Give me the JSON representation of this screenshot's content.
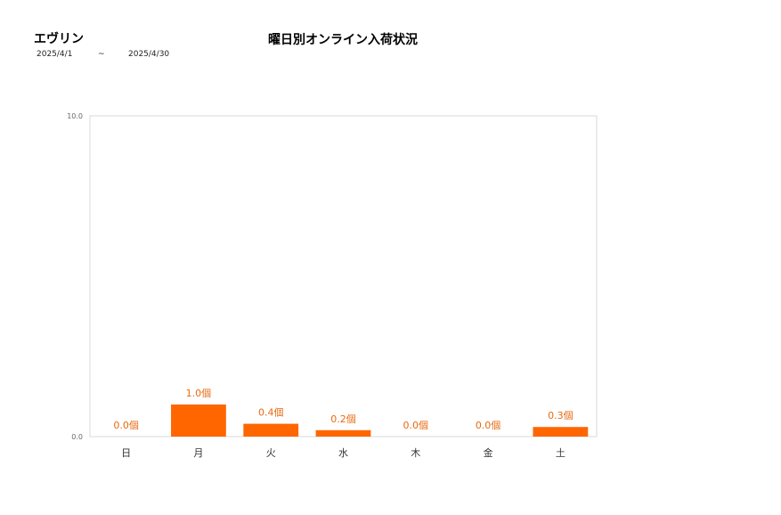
{
  "header": {
    "brand": "エヴリン",
    "title": "曜日別オンライン入荷状況",
    "date_start": "2025/4/1",
    "date_sep": "~",
    "date_end": "2025/4/30"
  },
  "chart_data": {
    "type": "bar",
    "categories": [
      "日",
      "月",
      "火",
      "水",
      "木",
      "金",
      "土"
    ],
    "values": [
      0.0,
      1.0,
      0.4,
      0.2,
      0.0,
      0.0,
      0.3
    ],
    "data_labels": [
      "0.0個",
      "1.0個",
      "0.4個",
      "0.2個",
      "0.0個",
      "0.0個",
      "0.3個"
    ],
    "ylim": [
      0,
      10
    ],
    "yticks": [
      "0.0",
      "10.0"
    ],
    "title": "曜日別オンライン入荷状況",
    "xlabel": "",
    "ylabel": "",
    "grid": false,
    "bar_color": "#ff6600",
    "label_color": "#e86a10"
  }
}
